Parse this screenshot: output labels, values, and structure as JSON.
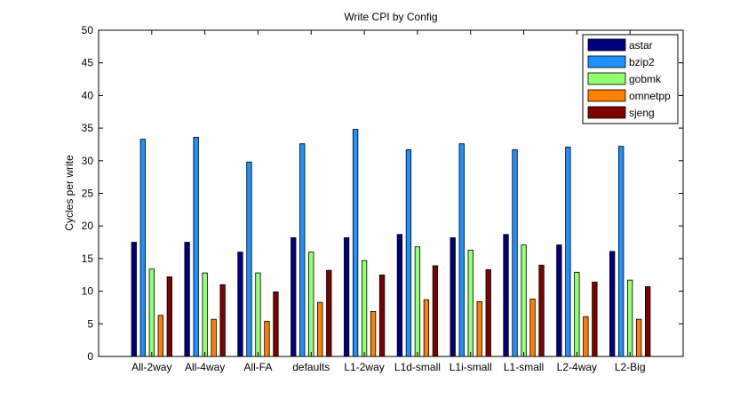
{
  "chart_data": {
    "type": "bar",
    "title": "Write CPI by Config",
    "xlabel": "",
    "ylabel": "Cycles per write",
    "ylim": [
      0,
      50
    ],
    "yticks": [
      0,
      5,
      10,
      15,
      20,
      25,
      30,
      35,
      40,
      45,
      50
    ],
    "grid": false,
    "legend_position": "top-right",
    "categories": [
      "All-2way",
      "All-4way",
      "All-FA",
      "defaults",
      "L1-2way",
      "L1d-small",
      "L1i-small",
      "L1-small",
      "L2-4way",
      "L2-Big"
    ],
    "series": [
      {
        "name": "astar",
        "color": "#00007f",
        "values": [
          17.5,
          17.5,
          16.0,
          18.2,
          18.2,
          18.7,
          18.2,
          18.7,
          17.1,
          16.1
        ]
      },
      {
        "name": "bzip2",
        "color": "#1e90ff",
        "values": [
          33.3,
          33.6,
          29.8,
          32.6,
          34.8,
          31.7,
          32.6,
          31.7,
          32.1,
          32.2
        ]
      },
      {
        "name": "gobmk",
        "color": "#90ff70",
        "values": [
          13.4,
          12.8,
          12.8,
          16.0,
          14.7,
          16.8,
          16.3,
          17.1,
          12.9,
          11.7
        ]
      },
      {
        "name": "omnetpp",
        "color": "#ff7f00",
        "values": [
          6.3,
          5.7,
          5.4,
          8.3,
          6.9,
          8.7,
          8.4,
          8.8,
          6.1,
          5.7
        ]
      },
      {
        "name": "sjeng",
        "color": "#7f0000",
        "values": [
          12.2,
          11.0,
          9.9,
          13.2,
          12.5,
          13.9,
          13.3,
          14.0,
          11.4,
          10.7
        ]
      }
    ]
  }
}
